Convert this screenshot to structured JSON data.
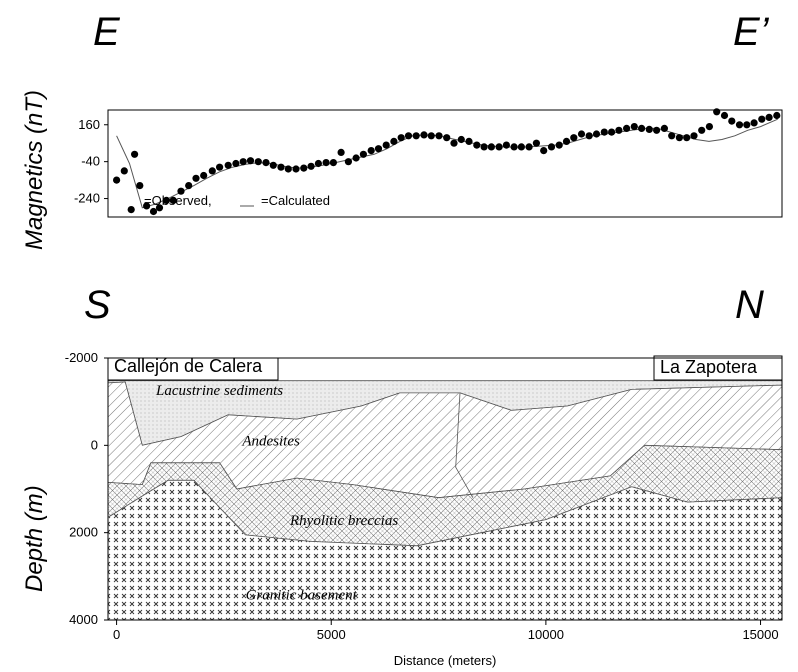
{
  "labels": {
    "top_left": "E",
    "top_right": "E’",
    "bottom_left": "S",
    "bottom_right": "N"
  },
  "chart_data": [
    {
      "type": "scatter",
      "ylabel": "Magnetics (nT)",
      "xlabel": "",
      "ylim": [
        -340,
        240
      ],
      "y_ticks": [
        "160",
        "-40",
        "-240"
      ],
      "y_tick_values": [
        160,
        -40,
        -240
      ],
      "legend": {
        "observed": "=Observed,",
        "calculated": "=Calculated"
      },
      "series": [
        {
          "kind": "observed",
          "x": [
            0,
            180,
            340,
            420,
            540,
            700,
            860,
            1000,
            1160,
            1320,
            1500,
            1680,
            1850,
            2030,
            2230,
            2400,
            2600,
            2780,
            2950,
            3120,
            3300,
            3480,
            3650,
            3830,
            4000,
            4180,
            4360,
            4530,
            4700,
            4880,
            5050,
            5230,
            5400,
            5580,
            5750,
            5930,
            6100,
            6280,
            6460,
            6630,
            6800,
            6980,
            7160,
            7330,
            7510,
            7690,
            7860,
            8030,
            8210,
            8390,
            8560,
            8730,
            8910,
            9080,
            9260,
            9430,
            9610,
            9780,
            9950,
            10130,
            10310,
            10480,
            10650,
            10830,
            11010,
            11180,
            11360,
            11530,
            11700,
            11880,
            12060,
            12230,
            12410,
            12580,
            12760,
            12930,
            13110,
            13280,
            13450,
            13630,
            13810,
            13980,
            14160,
            14330,
            14510,
            14680,
            14850,
            15030,
            15200,
            15380
          ],
          "y": [
            -140,
            -90,
            -300,
            0,
            -170,
            -280,
            -310,
            -290,
            -250,
            -250,
            -200,
            -170,
            -130,
            -115,
            -90,
            -70,
            -60,
            -50,
            -40,
            -35,
            -40,
            -45,
            -60,
            -70,
            -80,
            -80,
            -75,
            -65,
            -50,
            -45,
            -45,
            10,
            -40,
            -20,
            0,
            20,
            30,
            50,
            70,
            90,
            100,
            100,
            105,
            100,
            100,
            90,
            60,
            80,
            70,
            50,
            40,
            40,
            40,
            50,
            40,
            40,
            40,
            60,
            20,
            40,
            50,
            70,
            90,
            110,
            100,
            110,
            120,
            120,
            130,
            140,
            150,
            140,
            135,
            130,
            140,
            100,
            90,
            90,
            100,
            130,
            150,
            230,
            210,
            180,
            160,
            160,
            170,
            190,
            200,
            210
          ],
          "values_note": ""
        },
        {
          "kind": "calculated",
          "x": [
            0,
            300,
            600,
            900,
            1200,
            1500,
            1800,
            2100,
            2400,
            2700,
            3000,
            3300,
            3600,
            3900,
            4200,
            4500,
            4800,
            5100,
            5400,
            5700,
            6000,
            6300,
            6600,
            6900,
            7200,
            7500,
            7800,
            8100,
            8400,
            8700,
            9000,
            9300,
            9600,
            9900,
            10200,
            10500,
            10800,
            11100,
            11400,
            11700,
            12000,
            12300,
            12600,
            12900,
            13200,
            13500,
            13800,
            14100,
            14400,
            14700,
            15000,
            15400
          ],
          "y": [
            100,
            -50,
            -290,
            -270,
            -240,
            -205,
            -170,
            -130,
            -95,
            -70,
            -55,
            -45,
            -50,
            -65,
            -75,
            -70,
            -60,
            -45,
            -30,
            -15,
            0,
            30,
            70,
            100,
            105,
            100,
            85,
            70,
            55,
            45,
            40,
            38,
            40,
            45,
            50,
            60,
            80,
            100,
            110,
            120,
            130,
            140,
            140,
            120,
            100,
            80,
            70,
            80,
            100,
            130,
            150,
            190
          ]
        }
      ]
    },
    {
      "type": "area",
      "ylabel": "Depth (m)",
      "xlabel": "Distance (meters)",
      "xlim": [
        -200,
        15500
      ],
      "ylim": [
        -2000,
        4000
      ],
      "x_ticks": [
        "0",
        "5000",
        "10000",
        "15000"
      ],
      "x_tick_values": [
        0,
        5000,
        10000,
        15000
      ],
      "y_ticks": [
        "-2000",
        "0",
        "2000",
        "4000"
      ],
      "y_tick_values": [
        -2000,
        0,
        2000,
        4000
      ],
      "places": {
        "left": "Callejón de Calera",
        "right": "La Zapotera"
      },
      "units": [
        {
          "name": "Lacustrine sediments",
          "pattern": "dots",
          "top": [
            [
              -200,
              -1480
            ],
            [
              15500,
              -1480
            ]
          ],
          "bottom": [
            [
              -200,
              -1430
            ],
            [
              200,
              -1450
            ],
            [
              600,
              0
            ],
            [
              1500,
              -200
            ],
            [
              2600,
              -700
            ],
            [
              4200,
              -600
            ],
            [
              5700,
              -900
            ],
            [
              6600,
              -1200
            ],
            [
              8000,
              -1200
            ],
            [
              9200,
              -800
            ],
            [
              10500,
              -900
            ],
            [
              12000,
              -1280
            ],
            [
              15500,
              -1380
            ]
          ]
        },
        {
          "name": "Andesites",
          "pattern": "hatch",
          "top": [
            [
              -200,
              -1430
            ],
            [
              200,
              -1450
            ],
            [
              600,
              0
            ],
            [
              1500,
              -200
            ],
            [
              2600,
              -700
            ],
            [
              4200,
              -600
            ],
            [
              5700,
              -900
            ],
            [
              6600,
              -1200
            ],
            [
              8000,
              -1200
            ],
            [
              9200,
              -800
            ],
            [
              10500,
              -900
            ],
            [
              12000,
              -1280
            ],
            [
              15500,
              -1380
            ]
          ],
          "bottom": [
            [
              -200,
              850
            ],
            [
              600,
              900
            ],
            [
              800,
              400
            ],
            [
              2400,
              400
            ],
            [
              2800,
              1000
            ],
            [
              4200,
              750
            ],
            [
              5500,
              900
            ],
            [
              7500,
              1200
            ],
            [
              9500,
              1000
            ],
            [
              11500,
              700
            ],
            [
              12300,
              0
            ],
            [
              15500,
              100
            ]
          ]
        },
        {
          "name": "Rhyolitic breccias",
          "pattern": "diamond",
          "top": [
            [
              -200,
              850
            ],
            [
              600,
              900
            ],
            [
              800,
              400
            ],
            [
              2400,
              400
            ],
            [
              2800,
              1000
            ],
            [
              4200,
              750
            ],
            [
              5500,
              900
            ],
            [
              7500,
              1200
            ],
            [
              9500,
              1000
            ],
            [
              11500,
              700
            ],
            [
              12300,
              0
            ],
            [
              15500,
              100
            ]
          ],
          "bottom": [
            [
              -200,
              1650
            ],
            [
              700,
              1100
            ],
            [
              1200,
              800
            ],
            [
              1800,
              800
            ],
            [
              3000,
              2050
            ],
            [
              4500,
              2200
            ],
            [
              7000,
              2300
            ],
            [
              8500,
              2000
            ],
            [
              10000,
              1700
            ],
            [
              12000,
              950
            ],
            [
              13300,
              1300
            ],
            [
              15500,
              1200
            ]
          ]
        },
        {
          "name": "Granitic basement",
          "pattern": "cross",
          "top": [
            [
              -200,
              1650
            ],
            [
              700,
              1100
            ],
            [
              1200,
              800
            ],
            [
              1800,
              800
            ],
            [
              3000,
              2050
            ],
            [
              4500,
              2200
            ],
            [
              7000,
              2300
            ],
            [
              8500,
              2000
            ],
            [
              10000,
              1700
            ],
            [
              12000,
              950
            ],
            [
              13300,
              1300
            ],
            [
              15500,
              1200
            ]
          ],
          "bottom": [
            [
              -200,
              4000
            ],
            [
              15500,
              4000
            ]
          ]
        }
      ],
      "internal_contacts": [
        [
          [
            8000,
            -1200
          ],
          [
            7900,
            500
          ],
          [
            8300,
            1200
          ]
        ]
      ],
      "unit_labels": [
        {
          "text": "Lacustrine sediments",
          "x": 2400,
          "y": -1150
        },
        {
          "text": "Andesites",
          "x": 3600,
          "y": 0
        },
        {
          "text": "Rhyolitic breccias",
          "x": 5300,
          "y": 1830
        },
        {
          "text": "Granitic basement",
          "x": 4300,
          "y": 3530
        }
      ]
    }
  ]
}
